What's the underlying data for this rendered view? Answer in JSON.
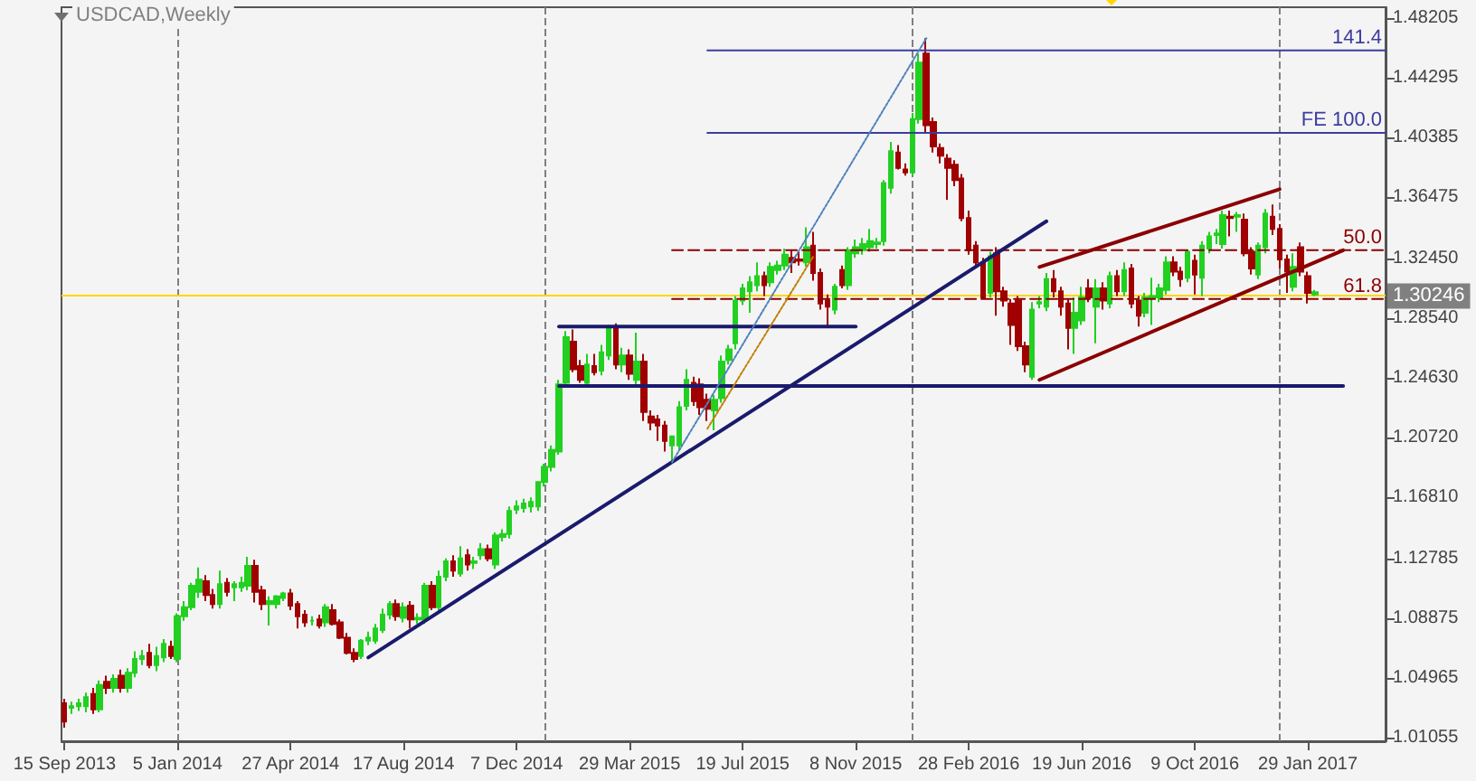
{
  "chart_data": {
    "type": "candlestick",
    "title": "USDCAD,Weekly",
    "xlim": [
      "2013-09-12",
      "2017-04-16"
    ],
    "xticks": [
      {
        "value": "2013-09-15",
        "label": "15 Sep 2013"
      },
      {
        "value": "2014-01-05",
        "label": "5 Jan 2014"
      },
      {
        "value": "2014-04-27",
        "label": "27 Apr 2014"
      },
      {
        "value": "2014-08-17",
        "label": "17 Aug 2014"
      },
      {
        "value": "2014-12-07",
        "label": "7 Dec 2014"
      },
      {
        "value": "2015-03-29",
        "label": "29 Mar 2015"
      },
      {
        "value": "2015-07-19",
        "label": "19 Jul 2015"
      },
      {
        "value": "2015-11-08",
        "label": "8 Nov 2015"
      },
      {
        "value": "2016-02-28",
        "label": "28 Feb 2016"
      },
      {
        "value": "2016-06-19",
        "label": "19 Jun 2016"
      },
      {
        "value": "2016-10-09",
        "label": "9 Oct 2016"
      },
      {
        "value": "2017-01-29",
        "label": "29 Jan 2017"
      }
    ],
    "ylim": [
      1.0081,
      1.4893
    ],
    "yticks": [
      1.48205,
      1.44295,
      1.40385,
      1.36475,
      {
        "value": 1.3245,
        "label": "1.32450"
      },
      {
        "value": 1.2854,
        "label": "1.28540"
      },
      {
        "value": 1.2463,
        "label": "1.24630"
      },
      {
        "value": 1.2072,
        "label": "1.20720"
      },
      {
        "value": 1.1681,
        "label": "1.16810"
      },
      1.12785,
      1.08875,
      1.04965,
      1.01055
    ],
    "ref_lines": [
      {
        "axis": "x",
        "value": "2014-01-05",
        "color": "#808080",
        "line_style": "dashed"
      },
      {
        "axis": "x",
        "value": "2015-01-04",
        "color": "#808080",
        "line_style": "dashed"
      },
      {
        "axis": "x",
        "value": "2016-01-03",
        "color": "#808080",
        "line_style": "dashed"
      },
      {
        "axis": "x",
        "value": "2017-01-01",
        "color": "#808080",
        "line_style": "dashed"
      },
      {
        "axis": "y",
        "value": 1.30246,
        "label": "1.30246",
        "color": "#ffd700"
      }
    ],
    "series": [
      {
        "colors": [
          "#a00000",
          "#22d022",
          "#22d022",
          "#22d022",
          "#a00000",
          "#22d022",
          "#a00000",
          "#22d022",
          "#a00000",
          "#22d022",
          "#22d022",
          "#22d022",
          "#a00000",
          "#22d022",
          "#22d022",
          "#a00000",
          "#22d022",
          "#22d022",
          "#22d022",
          "#22d022",
          "#a00000",
          "#a00000",
          "#22d022",
          "#a00000",
          "#22d022",
          "#22d022",
          "#22d022",
          "#a00000",
          "#a00000",
          "#22d022",
          "#22d022",
          "#22d022",
          "#a00000",
          "#a00000",
          "#a00000",
          "#22d022",
          "#a00000",
          "#22d022",
          "#a00000",
          "#a00000",
          "#a00000",
          "#a00000",
          "#22d022",
          "#22d022",
          "#22d022",
          "#22d022",
          "#22d022",
          "#a00000",
          "#22d022",
          "#a00000",
          "#22d022",
          "#22d022",
          "#a00000",
          "#22d022",
          "#22d022",
          "#a00000",
          "#22d022",
          "#a00000",
          "#22d022",
          "#22d022",
          "#a00000",
          "#22d022",
          "#22d022",
          "#22d022",
          "#22d022",
          "#22d022",
          "#22d022",
          "#22d022",
          "#22d022",
          "#22d022",
          "#22d022",
          "#22d022",
          "#a00000",
          "#a00000",
          "#22d022",
          "#a00000",
          "#22d022",
          "#22d022",
          "#a00000",
          "#22d022",
          "#a00000",
          "#22d022",
          "#a00000",
          "#a00000",
          "#a00000",
          "#a00000",
          "#22d022",
          "#22d022",
          "#22d022",
          "#a00000",
          "#a00000",
          "#a00000",
          "#22d022",
          "#22d022",
          "#22d022",
          "#22d022",
          "#22d022",
          "#22d022",
          "#22d022",
          "#a00000",
          "#22d022",
          "#22d022",
          "#22d022",
          "#a00000",
          "#a00000",
          "#22d022",
          "#a00000",
          "#a00000",
          "#a00000",
          "#22d022",
          "#a00000",
          "#22d022",
          "#22d022",
          "#22d022",
          "#22d022",
          "#22d022",
          "#22d022",
          "#22d022",
          "#a00000",
          "#a00000",
          "#22d022",
          "#22d022",
          "#a00000",
          "#a00000",
          "#a00000",
          "#a00000",
          "#a00000",
          "#a00000",
          "#a00000",
          "#a00000",
          "#a00000",
          "#22d022",
          "#a00000",
          "#a00000",
          "#a00000",
          "#a00000",
          "#a00000",
          "#22d022",
          "#22d022",
          "#22d022",
          "#a00000",
          "#a00000",
          "#a00000",
          "#22d022",
          "#22d022",
          "#a00000",
          "#22d022",
          "#a00000",
          "#22d022",
          "#a00000",
          "#22d022",
          "#a00000",
          "#a00000",
          "#22d022",
          "#22d022",
          "#22d022",
          "#22d022",
          "#a00000",
          "#a00000",
          "#22d022",
          "#a00000",
          "#22d022",
          "#22d022",
          "#22d022",
          "#22d022",
          "#a00000",
          "#22d022",
          "#a00000",
          "#a00000",
          "#22d022",
          "#22d022",
          "#a00000",
          "#a00000",
          "#a00000",
          "#22d022",
          "#a00000",
          "#a00000",
          "#22d022"
        ],
        "x": [
          "2013-09-15",
          "2013-09-22",
          "2013-09-29",
          "2013-10-06",
          "2013-10-13",
          "2013-10-20",
          "2013-10-27",
          "2013-11-03",
          "2013-11-10",
          "2013-11-17",
          "2013-11-24",
          "2013-12-01",
          "2013-12-08",
          "2013-12-15",
          "2013-12-22",
          "2013-12-29",
          "2014-01-05",
          "2014-01-12",
          "2014-01-19",
          "2014-01-26",
          "2014-02-02",
          "2014-02-09",
          "2014-02-16",
          "2014-02-23",
          "2014-03-02",
          "2014-03-09",
          "2014-03-16",
          "2014-03-23",
          "2014-03-30",
          "2014-04-06",
          "2014-04-13",
          "2014-04-20",
          "2014-04-27",
          "2014-05-04",
          "2014-05-11",
          "2014-05-18",
          "2014-05-25",
          "2014-06-01",
          "2014-06-08",
          "2014-06-15",
          "2014-06-22",
          "2014-06-29",
          "2014-07-06",
          "2014-07-13",
          "2014-07-20",
          "2014-07-27",
          "2014-08-03",
          "2014-08-10",
          "2014-08-17",
          "2014-08-24",
          "2014-08-31",
          "2014-09-07",
          "2014-09-14",
          "2014-09-21",
          "2014-09-28",
          "2014-10-05",
          "2014-10-12",
          "2014-10-19",
          "2014-10-26",
          "2014-11-02",
          "2014-11-09",
          "2014-11-16",
          "2014-11-23",
          "2014-11-30",
          "2014-12-07",
          "2014-12-14",
          "2014-12-21",
          "2014-12-28",
          "2015-01-04",
          "2015-01-11",
          "2015-01-18",
          "2015-01-25",
          "2015-02-01",
          "2015-02-08",
          "2015-02-15",
          "2015-02-22",
          "2015-03-01",
          "2015-03-08",
          "2015-03-15",
          "2015-03-22",
          "2015-03-29",
          "2015-04-05",
          "2015-04-12",
          "2015-04-19",
          "2015-04-26",
          "2015-05-03",
          "2015-05-10",
          "2015-05-17",
          "2015-05-24",
          "2015-05-31",
          "2015-06-07",
          "2015-06-14",
          "2015-06-21",
          "2015-06-28",
          "2015-07-05",
          "2015-07-12",
          "2015-07-19",
          "2015-07-26",
          "2015-08-02",
          "2015-08-09",
          "2015-08-16",
          "2015-08-23",
          "2015-08-30",
          "2015-09-06",
          "2015-09-13",
          "2015-09-20",
          "2015-09-27",
          "2015-10-04",
          "2015-10-11",
          "2015-10-18",
          "2015-10-25",
          "2015-11-01",
          "2015-11-08",
          "2015-11-15",
          "2015-11-22",
          "2015-11-29",
          "2015-12-06",
          "2015-12-13",
          "2015-12-20",
          "2015-12-27",
          "2016-01-03",
          "2016-01-10",
          "2016-01-17",
          "2016-01-24",
          "2016-01-31",
          "2016-02-07",
          "2016-02-14",
          "2016-02-21",
          "2016-02-28",
          "2016-03-06",
          "2016-03-13",
          "2016-03-20",
          "2016-03-27",
          "2016-04-03",
          "2016-04-10",
          "2016-04-17",
          "2016-04-24",
          "2016-05-01",
          "2016-05-08",
          "2016-05-15",
          "2016-05-22",
          "2016-05-29",
          "2016-06-05",
          "2016-06-12",
          "2016-06-19",
          "2016-06-26",
          "2016-07-03",
          "2016-07-10",
          "2016-07-17",
          "2016-07-24",
          "2016-07-31",
          "2016-08-07",
          "2016-08-14",
          "2016-08-21",
          "2016-08-28",
          "2016-09-04",
          "2016-09-11",
          "2016-09-18",
          "2016-09-25",
          "2016-10-02",
          "2016-10-09",
          "2016-10-16",
          "2016-10-23",
          "2016-10-30",
          "2016-11-06",
          "2016-11-13",
          "2016-11-20",
          "2016-11-27",
          "2016-12-04",
          "2016-12-11",
          "2016-12-18",
          "2016-12-25",
          "2017-01-01",
          "2017-01-08",
          "2017-01-15",
          "2017-01-22",
          "2017-01-29",
          "2017-02-05"
        ],
        "ohlc": [
          [
            1.033,
            1.036,
            1.017,
            1.021
          ],
          [
            1.03,
            1.034,
            1.026,
            1.031
          ],
          [
            1.031,
            1.036,
            1.028,
            1.033
          ],
          [
            1.031,
            1.04,
            1.027,
            1.037
          ],
          [
            1.039,
            1.043,
            1.026,
            1.029
          ],
          [
            1.029,
            1.048,
            1.027,
            1.045
          ],
          [
            1.047,
            1.051,
            1.039,
            1.043
          ],
          [
            1.043,
            1.052,
            1.04,
            1.049
          ],
          [
            1.051,
            1.055,
            1.04,
            1.043
          ],
          [
            1.043,
            1.056,
            1.04,
            1.053
          ],
          [
            1.053,
            1.067,
            1.05,
            1.062
          ],
          [
            1.062,
            1.068,
            1.058,
            1.064
          ],
          [
            1.066,
            1.072,
            1.056,
            1.058
          ],
          [
            1.058,
            1.07,
            1.054,
            1.064
          ],
          [
            1.063,
            1.075,
            1.06,
            1.072
          ],
          [
            1.07,
            1.074,
            1.062,
            1.064
          ],
          [
            1.062,
            1.092,
            1.06,
            1.09
          ],
          [
            1.09,
            1.1,
            1.087,
            1.096
          ],
          [
            1.096,
            1.112,
            1.094,
            1.11
          ],
          [
            1.106,
            1.122,
            1.102,
            1.114
          ],
          [
            1.113,
            1.117,
            1.1,
            1.104
          ],
          [
            1.104,
            1.108,
            1.095,
            1.098
          ],
          [
            1.098,
            1.12,
            1.095,
            1.111
          ],
          [
            1.112,
            1.115,
            1.103,
            1.106
          ],
          [
            1.109,
            1.113,
            1.1,
            1.111
          ],
          [
            1.109,
            1.116,
            1.106,
            1.112
          ],
          [
            1.11,
            1.129,
            1.107,
            1.123
          ],
          [
            1.123,
            1.127,
            1.099,
            1.106
          ],
          [
            1.107,
            1.11,
            1.094,
            1.098
          ],
          [
            1.098,
            1.103,
            1.084,
            1.1
          ],
          [
            1.098,
            1.104,
            1.095,
            1.103
          ],
          [
            1.102,
            1.106,
            1.1,
            1.105
          ],
          [
            1.105,
            1.108,
            1.094,
            1.097
          ],
          [
            1.098,
            1.1,
            1.082,
            1.09
          ],
          [
            1.091,
            1.094,
            1.083,
            1.086
          ],
          [
            1.087,
            1.09,
            1.084,
            1.087
          ],
          [
            1.088,
            1.091,
            1.082,
            1.084
          ],
          [
            1.086,
            1.098,
            1.083,
            1.096
          ],
          [
            1.094,
            1.098,
            1.084,
            1.085
          ],
          [
            1.086,
            1.088,
            1.075,
            1.076
          ],
          [
            1.076,
            1.079,
            1.065,
            1.066
          ],
          [
            1.066,
            1.069,
            1.06,
            1.062
          ],
          [
            1.064,
            1.075,
            1.062,
            1.074
          ],
          [
            1.074,
            1.08,
            1.071,
            1.076
          ],
          [
            1.074,
            1.085,
            1.072,
            1.082
          ],
          [
            1.081,
            1.095,
            1.079,
            1.091
          ],
          [
            1.091,
            1.1,
            1.088,
            1.098
          ],
          [
            1.098,
            1.101,
            1.087,
            1.09
          ],
          [
            1.089,
            1.099,
            1.086,
            1.096
          ],
          [
            1.097,
            1.1,
            1.082,
            1.088
          ],
          [
            1.088,
            1.092,
            1.085,
            1.089
          ],
          [
            1.088,
            1.112,
            1.085,
            1.11
          ],
          [
            1.11,
            1.113,
            1.094,
            1.096
          ],
          [
            1.096,
            1.12,
            1.093,
            1.116
          ],
          [
            1.116,
            1.128,
            1.113,
            1.126
          ],
          [
            1.126,
            1.13,
            1.116,
            1.12
          ],
          [
            1.118,
            1.136,
            1.116,
            1.128
          ],
          [
            1.13,
            1.134,
            1.12,
            1.124
          ],
          [
            1.125,
            1.129,
            1.121,
            1.126
          ],
          [
            1.13,
            1.138,
            1.127,
            1.134
          ],
          [
            1.134,
            1.137,
            1.126,
            1.128
          ],
          [
            1.124,
            1.145,
            1.121,
            1.143
          ],
          [
            1.142,
            1.147,
            1.139,
            1.144
          ],
          [
            1.144,
            1.162,
            1.141,
            1.159
          ],
          [
            1.16,
            1.166,
            1.157,
            1.162
          ],
          [
            1.161,
            1.167,
            1.158,
            1.164
          ],
          [
            1.162,
            1.168,
            1.158,
            1.165
          ],
          [
            1.162,
            1.178,
            1.159,
            1.178
          ],
          [
            1.178,
            1.19,
            1.175,
            1.188
          ],
          [
            1.188,
            1.202,
            1.185,
            1.199
          ],
          [
            1.198,
            1.245,
            1.196,
            1.242
          ],
          [
            1.243,
            1.277,
            1.24,
            1.273
          ],
          [
            1.27,
            1.278,
            1.25,
            1.252
          ],
          [
            1.254,
            1.258,
            1.243,
            1.245
          ],
          [
            1.243,
            1.262,
            1.24,
            1.255
          ],
          [
            1.254,
            1.262,
            1.248,
            1.25
          ],
          [
            1.251,
            1.268,
            1.248,
            1.263
          ],
          [
            1.261,
            1.281,
            1.258,
            1.279
          ],
          [
            1.279,
            1.282,
            1.252,
            1.255
          ],
          [
            1.255,
            1.266,
            1.25,
            1.261
          ],
          [
            1.261,
            1.265,
            1.245,
            1.249
          ],
          [
            1.245,
            1.276,
            1.242,
            1.257
          ],
          [
            1.257,
            1.262,
            1.218,
            1.224
          ],
          [
            1.221,
            1.225,
            1.212,
            1.217
          ],
          [
            1.219,
            1.222,
            1.205,
            1.215
          ],
          [
            1.215,
            1.218,
            1.198,
            1.205
          ],
          [
            1.202,
            1.208,
            1.191,
            1.208
          ],
          [
            1.202,
            1.231,
            1.199,
            1.227
          ],
          [
            1.228,
            1.252,
            1.225,
            1.245
          ],
          [
            1.243,
            1.247,
            1.228,
            1.231
          ],
          [
            1.242,
            1.246,
            1.222,
            1.227
          ],
          [
            1.232,
            1.236,
            1.218,
            1.226
          ],
          [
            1.225,
            1.235,
            1.212,
            1.232
          ],
          [
            1.233,
            1.261,
            1.23,
            1.257
          ],
          [
            1.258,
            1.268,
            1.255,
            1.265
          ],
          [
            1.269,
            1.3,
            1.265,
            1.297
          ],
          [
            1.297,
            1.308,
            1.294,
            1.305
          ],
          [
            1.303,
            1.313,
            1.289,
            1.309
          ],
          [
            1.307,
            1.322,
            1.303,
            1.313
          ],
          [
            1.313,
            1.316,
            1.3,
            1.307
          ],
          [
            1.309,
            1.322,
            1.306,
            1.319
          ],
          [
            1.317,
            1.323,
            1.314,
            1.32
          ],
          [
            1.32,
            1.331,
            1.317,
            1.327
          ],
          [
            1.325,
            1.33,
            1.315,
            1.322
          ],
          [
            1.324,
            1.329,
            1.32,
            1.323
          ],
          [
            1.322,
            1.345,
            1.319,
            1.332
          ],
          [
            1.333,
            1.342,
            1.31,
            1.315
          ],
          [
            1.315,
            1.318,
            1.291,
            1.295
          ],
          [
            1.297,
            1.301,
            1.279,
            1.293
          ],
          [
            1.291,
            1.308,
            1.288,
            1.306
          ],
          [
            1.317,
            1.32,
            1.305,
            1.307
          ],
          [
            1.307,
            1.332,
            1.304,
            1.33
          ],
          [
            1.328,
            1.337,
            1.325,
            1.332
          ],
          [
            1.33,
            1.338,
            1.327,
            1.334
          ],
          [
            1.332,
            1.344,
            1.329,
            1.336
          ],
          [
            1.334,
            1.338,
            1.331,
            1.335
          ],
          [
            1.336,
            1.376,
            1.333,
            1.374
          ],
          [
            1.371,
            1.401,
            1.367,
            1.395
          ],
          [
            1.394,
            1.399,
            1.383,
            1.384
          ],
          [
            1.383,
            1.387,
            1.379,
            1.381
          ],
          [
            1.381,
            1.42,
            1.379,
            1.416
          ],
          [
            1.416,
            1.459,
            1.413,
            1.453
          ],
          [
            1.459,
            1.469,
            1.407,
            1.412
          ],
          [
            1.414,
            1.417,
            1.394,
            1.398
          ],
          [
            1.397,
            1.4,
            1.387,
            1.392
          ],
          [
            1.39,
            1.393,
            1.363,
            1.384
          ],
          [
            1.386,
            1.389,
            1.372,
            1.376
          ],
          [
            1.377,
            1.38,
            1.349,
            1.351
          ],
          [
            1.351,
            1.356,
            1.327,
            1.33
          ],
          [
            1.333,
            1.336,
            1.319,
            1.322
          ],
          [
            1.322,
            1.325,
            1.298,
            1.299
          ],
          [
            1.302,
            1.329,
            1.299,
            1.326
          ],
          [
            1.328,
            1.332,
            1.287,
            1.303
          ],
          [
            1.303,
            1.306,
            1.293,
            1.297
          ],
          [
            1.295,
            1.298,
            1.268,
            1.281
          ],
          [
            1.297,
            1.3,
            1.264,
            1.267
          ],
          [
            1.267,
            1.27,
            1.25,
            1.255
          ],
          [
            1.247,
            1.296,
            1.245,
            1.291
          ],
          [
            1.295,
            1.3,
            1.292,
            1.296
          ],
          [
            1.293,
            1.315,
            1.29,
            1.311
          ],
          [
            1.311,
            1.317,
            1.299,
            1.303
          ],
          [
            1.303,
            1.306,
            1.287,
            1.293
          ],
          [
            1.295,
            1.298,
            1.265,
            1.279
          ],
          [
            1.279,
            1.299,
            1.262,
            1.289
          ],
          [
            1.284,
            1.306,
            1.281,
            1.299
          ],
          [
            1.305,
            1.311,
            1.296,
            1.299
          ],
          [
            1.293,
            1.311,
            1.269,
            1.305
          ],
          [
            1.305,
            1.309,
            1.291,
            1.297
          ],
          [
            1.295,
            1.316,
            1.292,
            1.313
          ],
          [
            1.313,
            1.317,
            1.3,
            1.303
          ],
          [
            1.303,
            1.322,
            1.3,
            1.317
          ],
          [
            1.318,
            1.321,
            1.292,
            1.295
          ],
          [
            1.297,
            1.3,
            1.28,
            1.287
          ],
          [
            1.289,
            1.302,
            1.286,
            1.299
          ],
          [
            1.299,
            1.312,
            1.281,
            1.3
          ],
          [
            1.299,
            1.308,
            1.296,
            1.305
          ],
          [
            1.304,
            1.326,
            1.301,
            1.322
          ],
          [
            1.322,
            1.326,
            1.313,
            1.316
          ],
          [
            1.316,
            1.319,
            1.306,
            1.311
          ],
          [
            1.312,
            1.33,
            1.309,
            1.329
          ],
          [
            1.323,
            1.327,
            1.301,
            1.314
          ],
          [
            1.312,
            1.336,
            1.3,
            1.333
          ],
          [
            1.331,
            1.342,
            1.328,
            1.339
          ],
          [
            1.34,
            1.344,
            1.334,
            1.341
          ],
          [
            1.334,
            1.356,
            1.331,
            1.353
          ],
          [
            1.352,
            1.356,
            1.339,
            1.351
          ],
          [
            1.352,
            1.355,
            1.342,
            1.353
          ],
          [
            1.35,
            1.354,
            1.326,
            1.328
          ],
          [
            1.329,
            1.332,
            1.314,
            1.318
          ],
          [
            1.314,
            1.335,
            1.311,
            1.333
          ],
          [
            1.332,
            1.357,
            1.328,
            1.354
          ],
          [
            1.352,
            1.36,
            1.34,
            1.344
          ],
          [
            1.344,
            1.347,
            1.318,
            1.324
          ],
          [
            1.324,
            1.327,
            1.302,
            1.316
          ],
          [
            1.306,
            1.328,
            1.303,
            1.319
          ],
          [
            1.332,
            1.335,
            1.313,
            1.316
          ],
          [
            1.313,
            1.316,
            1.295,
            1.302
          ],
          [
            1.301,
            1.304,
            1.3,
            1.3025
          ]
        ]
      },
      {
        "type": "line",
        "name": "141.4",
        "color": "#3c3ca0",
        "x": [
          "2015-06-14",
          "2017-04-16"
        ],
        "values": [
          1.461,
          1.461
        ]
      },
      {
        "type": "line",
        "name": "FE 100.0",
        "color": "#3c3ca0",
        "x": [
          "2015-06-14",
          "2017-04-16"
        ],
        "values": [
          1.407,
          1.407
        ]
      },
      {
        "type": "line",
        "name": "50.0",
        "color": "#8b0000",
        "line_style": "dashed",
        "x": [
          "2015-05-10",
          "2017-04-16"
        ],
        "values": [
          1.33,
          1.33
        ]
      },
      {
        "type": "line",
        "name": "61.8",
        "color": "#8b0000",
        "line_style": "dashed",
        "x": [
          "2015-05-10",
          "2017-04-16"
        ],
        "values": [
          1.298,
          1.298
        ]
      },
      {
        "type": "line",
        "color": "#1a1a6e",
        "x": [
          "2014-07-13",
          "2016-05-15"
        ],
        "values": [
          1.063,
          1.349
        ]
      },
      {
        "type": "line",
        "color": "#1a1a6e",
        "x": [
          "2015-01-18",
          "2015-11-08"
        ],
        "values": [
          1.28,
          1.28
        ]
      },
      {
        "type": "line",
        "color": "#1a1a6e",
        "x": [
          "2015-01-18",
          "2017-03-05"
        ],
        "values": [
          1.241,
          1.241
        ]
      },
      {
        "type": "line",
        "color": "#8b0000",
        "x": [
          "2016-05-08",
          "2017-01-01"
        ],
        "values": [
          1.319,
          1.37
        ]
      },
      {
        "type": "line",
        "color": "#8b0000",
        "x": [
          "2016-05-08",
          "2017-03-05"
        ],
        "values": [
          1.245,
          1.33
        ]
      },
      {
        "type": "line",
        "color": "#4f81bd",
        "line_style": "dotted",
        "x": [
          "2015-05-10",
          "2016-01-17"
        ],
        "values": [
          1.191,
          1.469
        ]
      },
      {
        "type": "line",
        "color": "#c08000",
        "line_style": "dotted",
        "x": [
          "2015-06-14",
          "2015-09-27"
        ],
        "values": [
          1.213,
          1.326
        ]
      }
    ]
  }
}
